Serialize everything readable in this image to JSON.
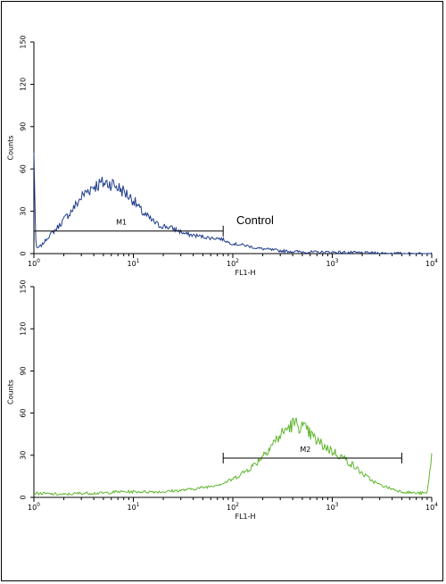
{
  "chart_data": [
    {
      "type": "histogram",
      "xscale": "log",
      "xlim": [
        1,
        10000
      ],
      "ylim": [
        0,
        150
      ],
      "xlabel": "FL1-H",
      "ylabel": "Counts",
      "x_ticks": [
        {
          "value": 1,
          "base": "10",
          "exp": "0"
        },
        {
          "value": 10,
          "base": "10",
          "exp": "1"
        },
        {
          "value": 100,
          "base": "10",
          "exp": "2"
        },
        {
          "value": 1000,
          "base": "10",
          "exp": "3"
        },
        {
          "value": 10000,
          "base": "10",
          "exp": "4"
        }
      ],
      "y_ticks": [
        "0",
        "30",
        "60",
        "90",
        "120",
        "150"
      ],
      "color": "#1f3c8c",
      "annotation": "Control",
      "gate": {
        "label": "M1",
        "start": 1,
        "end": 80,
        "y": 16
      },
      "series": [
        {
          "x": [
            1.0,
            1.05,
            1.2,
            1.4,
            1.7,
            2.0,
            2.5,
            3.0,
            3.5,
            4.0,
            5.0,
            6.0,
            7.0,
            8.0,
            10.0,
            12.0,
            15.0,
            18.0,
            22.0,
            27.0,
            33.0,
            40.0,
            50.0,
            60.0,
            70.0,
            80.0,
            90.0,
            100.0,
            130.0,
            170.0,
            220.0,
            300.0,
            400.0,
            500.0,
            700.0,
            1000.0,
            1500.0,
            2000.0,
            3000.0,
            5000.0,
            10000.0
          ],
          "values": [
            70,
            3,
            6,
            12,
            18,
            24,
            32,
            40,
            45,
            48,
            50,
            50,
            47,
            44,
            38,
            30,
            24,
            20,
            19,
            17,
            14,
            13,
            12,
            11,
            11,
            10,
            8,
            7,
            6,
            4,
            3,
            2,
            1.5,
            1.2,
            1,
            1,
            0.8,
            0.5,
            0.3,
            0,
            0
          ]
        }
      ]
    },
    {
      "type": "histogram",
      "xscale": "log",
      "xlim": [
        1,
        10000
      ],
      "ylim": [
        0,
        150
      ],
      "xlabel": "FL1-H",
      "ylabel": "Counts",
      "x_ticks": [
        {
          "value": 1,
          "base": "10",
          "exp": "0"
        },
        {
          "value": 10,
          "base": "10",
          "exp": "1"
        },
        {
          "value": 100,
          "base": "10",
          "exp": "2"
        },
        {
          "value": 1000,
          "base": "10",
          "exp": "3"
        },
        {
          "value": 10000,
          "base": "10",
          "exp": "4"
        }
      ],
      "y_ticks": [
        "0",
        "30",
        "60",
        "90",
        "120",
        "150"
      ],
      "color": "#5fb62e",
      "annotation": "",
      "gate": {
        "label": "M2",
        "start": 80,
        "end": 5000,
        "y": 28
      },
      "series": [
        {
          "x": [
            1.0,
            2.0,
            3.0,
            5.0,
            7.0,
            10.0,
            15.0,
            20.0,
            30.0,
            40.0,
            50.0,
            60.0,
            80.0,
            100.0,
            130.0,
            170.0,
            200.0,
            250.0,
            300.0,
            350.0,
            400.0,
            450.0,
            500.0,
            600.0,
            700.0,
            850.0,
            1000.0,
            1300.0,
            1600.0,
            2000.0,
            2500.0,
            3000.0,
            4000.0,
            5000.0,
            7000.0,
            9000.0,
            10000.0
          ],
          "values": [
            3,
            2,
            3,
            3,
            4,
            4,
            4,
            4,
            5,
            6,
            7,
            8,
            10,
            13,
            18,
            24,
            30,
            38,
            44,
            49,
            52,
            52,
            50,
            45,
            40,
            36,
            33,
            28,
            23,
            17,
            12,
            9,
            6,
            4,
            3,
            3,
            30
          ]
        }
      ]
    }
  ]
}
